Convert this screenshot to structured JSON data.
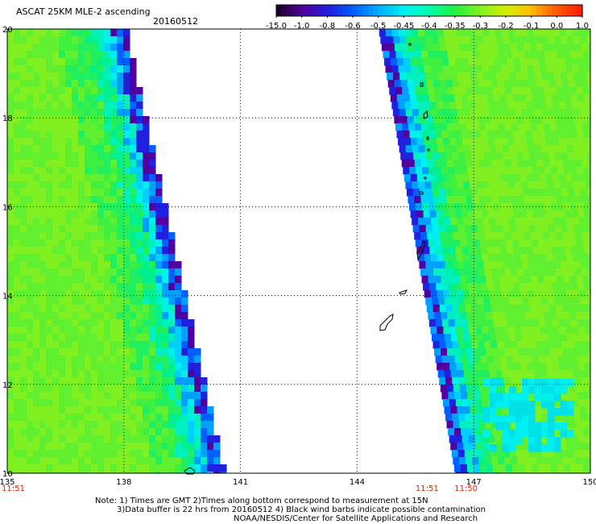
{
  "header": {
    "title": "ASCAT 25KM MLE-2 ascending",
    "date": "20160512"
  },
  "colorbar": {
    "labels": [
      "-15.0",
      "-1.0",
      "-0.8",
      "-0.6",
      "-0.5",
      "-0.45",
      "-0.4",
      "-0.35",
      "-0.3",
      "-0.2",
      "-0.1",
      "0.0",
      "1.0"
    ],
    "colors": [
      "#200030",
      "#5000a0",
      "#2020e0",
      "#0060ff",
      "#00b0ff",
      "#00f0f0",
      "#00ffb0",
      "#20f040",
      "#80f020",
      "#d0f000",
      "#ffc000",
      "#ff6000",
      "#ff2000"
    ]
  },
  "map": {
    "lon_ticks": [
      "135",
      "138",
      "141",
      "144",
      "147",
      "150"
    ],
    "lat_ticks": [
      "20",
      "18",
      "16",
      "14",
      "12",
      "10"
    ],
    "times": [
      {
        "text": "11:51",
        "lon": 135.0
      },
      {
        "text": "11:51",
        "lon": 145.8
      },
      {
        "text": "11:50",
        "lon": 146.8
      }
    ],
    "time_color": "#dd2200",
    "swath_left_value": -0.3,
    "swath_right_value": -0.32
  },
  "notes": {
    "line1": "Note: 1) Times are GMT 2)Times along bottom correspond to measurement at 15N",
    "line2": "3)Data buffer is 22 hrs from 20160512 4) Black wind barbs indicate possible contamination",
    "line3": "NOAA/NESDIS/Center for Satellite Applications and Research"
  }
}
